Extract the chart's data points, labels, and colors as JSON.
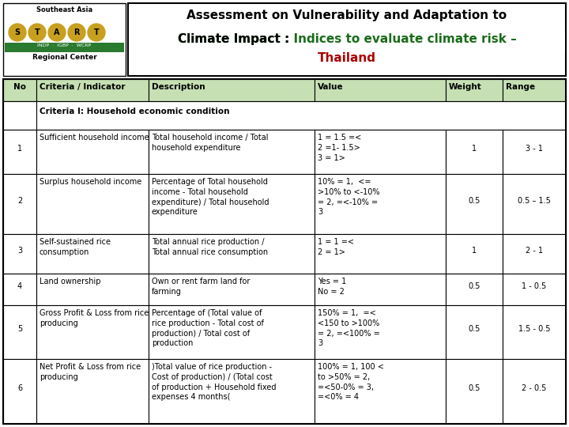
{
  "header_bg": "#c6e0b4",
  "header_cols": [
    "No",
    "Criteria / Indicator",
    "Description",
    "Value",
    "Weight",
    "Range"
  ],
  "criteria_header": "Criteria I: Household economic condition",
  "rows": [
    {
      "no": "1",
      "criteria": "Sufficient household income",
      "description": "Total household income / Total\nhousehold expenditure",
      "value": "1 = 1.5 =<\n2 =1- 1.5>\n3 = 1>",
      "weight": "1",
      "range": "3 - 1"
    },
    {
      "no": "2",
      "criteria": "Surplus household income",
      "description": "Percentage of Total household\nincome - Total household\nexpenditure) / Total household\nexpenditure",
      "value": "10% = 1,  <=\n>10% to <-10%\n= 2, =<-10% =\n3",
      "weight": "0.5",
      "range": "0.5 – 1.5"
    },
    {
      "no": "3",
      "criteria": "Self-sustained rice\nconsumption",
      "description": "Total annual rice production /\nTotal annual rice consumption",
      "value": "1 = 1 =<\n2 = 1>",
      "weight": "1",
      "range": "2 - 1"
    },
    {
      "no": "4",
      "criteria": "Land ownership",
      "description": "Own or rent farm land for\nfarming",
      "value": "Yes = 1\nNo = 2",
      "weight": "0.5",
      "range": "1 - 0.5"
    },
    {
      "no": "5",
      "criteria": "Gross Profit & Loss from rice\nproducing",
      "description": "Percentage of (Total value of\nrice production - Total cost of\nproduction) / Total cost of\nproduction",
      "value": "150% = 1,  =<\n<150 to >100%\n= 2, =<100% =\n3",
      "weight": "0.5",
      "range": "1.5 - 0.5"
    },
    {
      "no": "6",
      "criteria": "Net Profit & Loss from rice\nproducing",
      "description": ")Total value of rice production -\nCost of production) / (Total cost\nof production + Household fixed\nexpenses 4 months(",
      "value": "100% = 1, 100 <\nto >50% = 2,\n=<50-0% = 3,\n=<0% = 4",
      "weight": "0.5",
      "range": "2 - 0.5"
    }
  ],
  "title_line1": "Assessment on Vulnerability and Adaptation to",
  "title_line2_black": "Climate Impact : ",
  "title_line2_green": "Indices to evaluate climate risk –",
  "title_line3": "Thailand",
  "green_color": "#1a6b1a",
  "red_color": "#aa0000",
  "black_color": "#000000",
  "white": "#ffffff",
  "logo_bg": "#ffffff",
  "logo_start_letters": [
    "S",
    "T",
    "A",
    "R",
    "T"
  ],
  "logo_circle_color": "#c8a020",
  "logo_green_bar": "#2a7a30",
  "logo_green_bar_text": "INDP  ·  IGBP  ·  WCRP"
}
